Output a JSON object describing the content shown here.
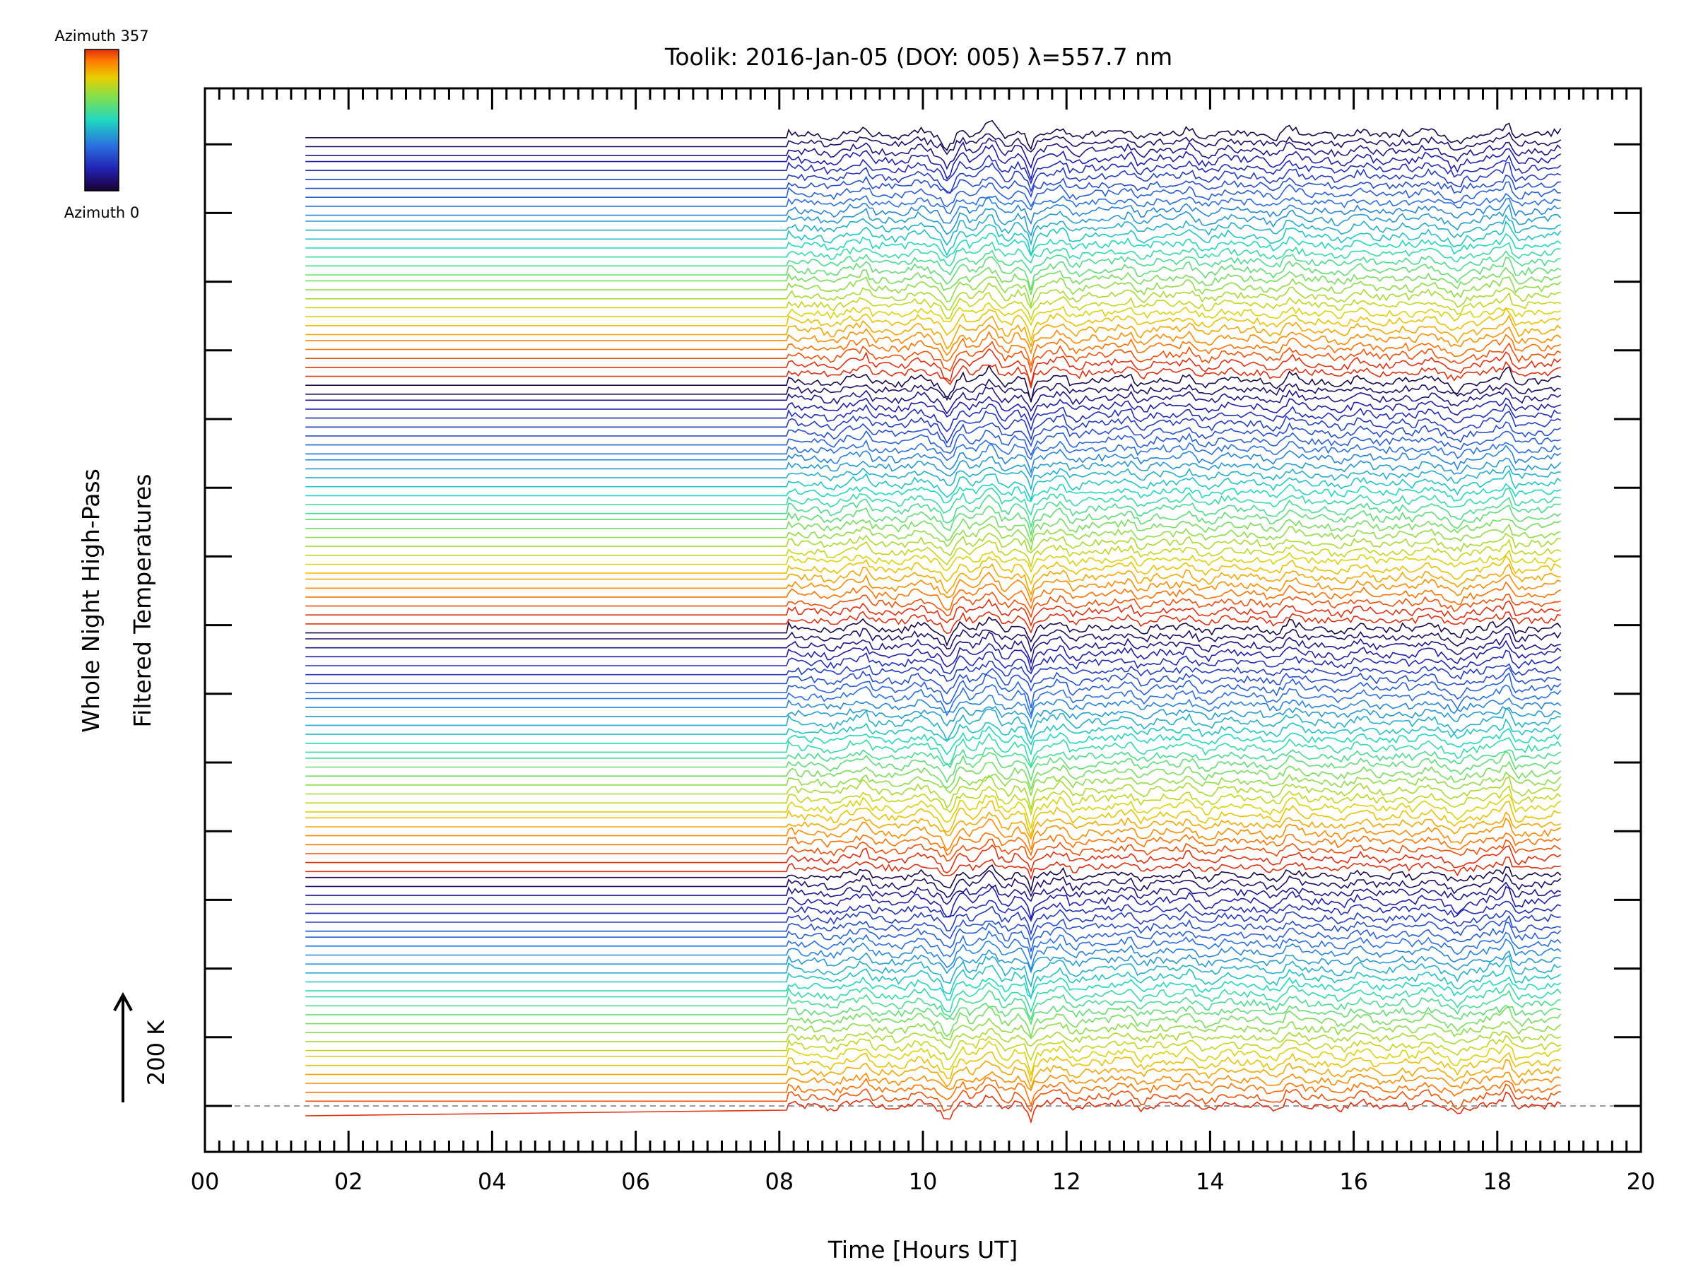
{
  "chart_data": {
    "type": "line",
    "title": "Toolik: 2016-Jan-05 (DOY: 005) λ=557.7 nm",
    "xlabel": "Time [Hours UT]",
    "ylabel_line1": "Whole Night High-Pass",
    "ylabel_line2": "Filtered Temperatures",
    "xlim": [
      0,
      20
    ],
    "x_ticks": [
      "00",
      "02",
      "04",
      "06",
      "08",
      "10",
      "12",
      "14",
      "16",
      "18",
      "20"
    ],
    "scale_bar_label": "200 K",
    "colorbar": {
      "top_label": "Azimuth 357",
      "bottom_label": "Azimuth 0",
      "colors": [
        "#e03010",
        "#ff7a00",
        "#e8d000",
        "#7fe050",
        "#20d8c0",
        "#2a70e0",
        "#2020b0",
        "#1a0030"
      ]
    },
    "traces": {
      "count": 115,
      "x_start": 1.4,
      "flat_end": 8.1,
      "x_end": 18.9,
      "azimuth_range": [
        0,
        357
      ],
      "description_color_by": "azimuth"
    },
    "grid": false,
    "legend": "colorbar top-left"
  }
}
